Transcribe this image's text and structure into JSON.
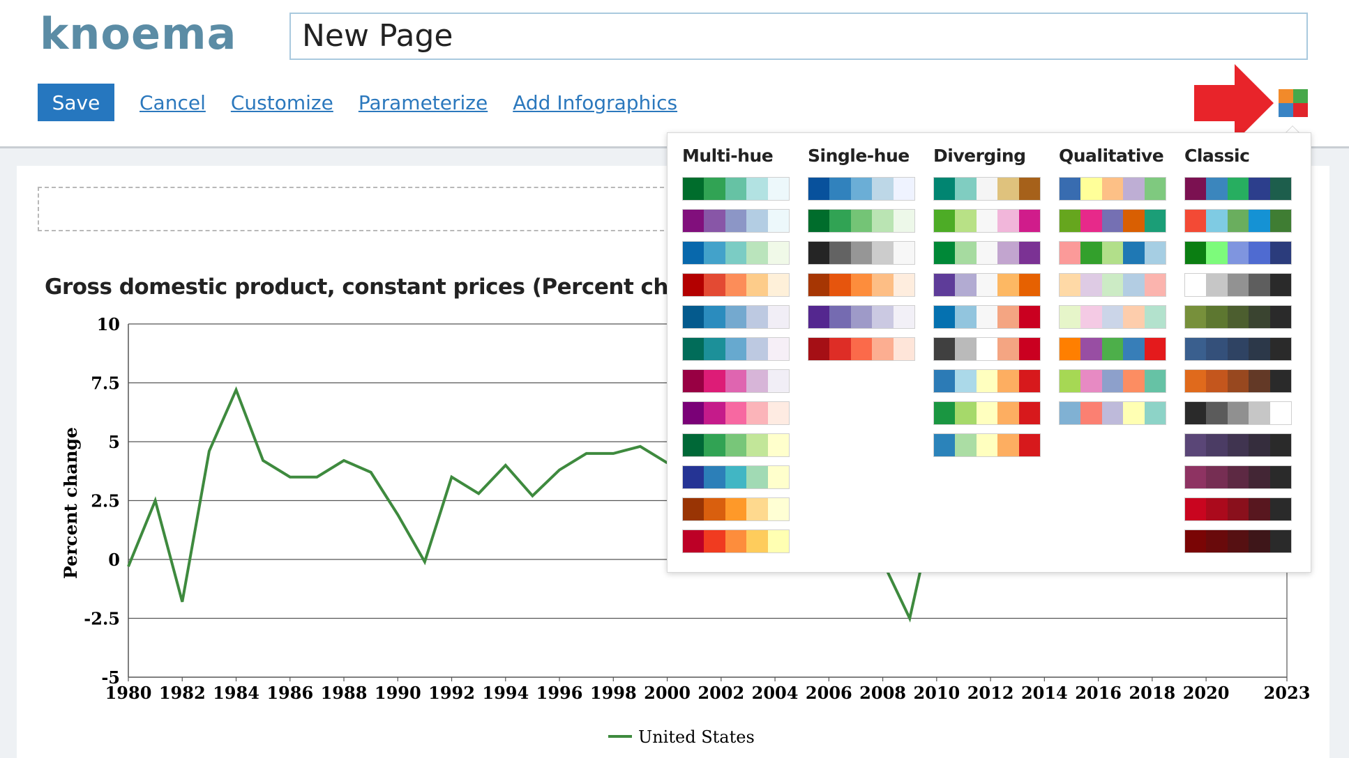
{
  "header": {
    "logo": "knoema",
    "page_title_value": "New Page"
  },
  "toolbar": {
    "save_label": "Save",
    "links": [
      "Cancel",
      "Customize",
      "Parameterize",
      "Add Infographics"
    ]
  },
  "chart": {
    "title": "Gross domestic product, constant prices (Percent change)",
    "ylabel": "Percent change"
  },
  "chart_data": {
    "type": "line",
    "title": "Gross domestic product, constant prices (Percent change)",
    "xlabel": "",
    "ylabel": "Percent change",
    "ylim": [
      -5,
      10
    ],
    "yticks": [
      "10",
      "7.5",
      "5",
      "2.5",
      "0",
      "-2.5",
      "-5"
    ],
    "xticks": [
      "1980",
      "1982",
      "1984",
      "1986",
      "1988",
      "1990",
      "1992",
      "1994",
      "1996",
      "1998",
      "2000",
      "2002",
      "2004",
      "2006",
      "2008",
      "2010",
      "2012",
      "2014",
      "2016",
      "2018",
      "2020",
      "2023"
    ],
    "legend_position": "bottom",
    "series": [
      {
        "name": "United States",
        "color": "#3e8a3e",
        "x": [
          1980,
          1981,
          1982,
          1983,
          1984,
          1985,
          1986,
          1987,
          1988,
          1989,
          1990,
          1991,
          1992,
          1993,
          1994,
          1995,
          1996,
          1997,
          1998,
          1999,
          2000,
          2008,
          2009,
          2010
        ],
        "values": [
          -0.3,
          2.5,
          -1.8,
          4.6,
          7.2,
          4.2,
          3.5,
          3.5,
          4.2,
          3.7,
          1.9,
          -0.1,
          3.5,
          2.8,
          4.0,
          2.7,
          3.8,
          4.5,
          4.5,
          4.8,
          4.1,
          -0.1,
          -2.5,
          2.6
        ]
      }
    ]
  },
  "palette_menu": {
    "columns": [
      {
        "title": "Multi-hue",
        "palettes": [
          [
            "#006d2c",
            "#31a354",
            "#66c2a4",
            "#b2e2e2",
            "#edf8fb"
          ],
          [
            "#810f7c",
            "#8856a7",
            "#8c96c6",
            "#b3cde3",
            "#edf8fb"
          ],
          [
            "#0868ac",
            "#43a2ca",
            "#7bccc4",
            "#bae4bc",
            "#f0f9e8"
          ],
          [
            "#b30000",
            "#e34a33",
            "#fc8d59",
            "#fdcc8a",
            "#fef0d9"
          ],
          [
            "#045a8d",
            "#2b8cbe",
            "#74a9cf",
            "#bdc9e1",
            "#f1eef6"
          ],
          [
            "#016c59",
            "#1c9099",
            "#67a9cf",
            "#bdc9e1",
            "#f6eff7"
          ],
          [
            "#980043",
            "#dd1c77",
            "#df65b0",
            "#d7b5d8",
            "#f1eef6"
          ],
          [
            "#7a0177",
            "#c51b8a",
            "#f768a1",
            "#fbb4b9",
            "#feebe2"
          ],
          [
            "#006837",
            "#31a354",
            "#78c679",
            "#c2e699",
            "#ffffcc"
          ],
          [
            "#253494",
            "#2c7fb8",
            "#41b6c4",
            "#a1dab4",
            "#ffffcc"
          ],
          [
            "#993404",
            "#d95f0e",
            "#fe9929",
            "#fed98e",
            "#ffffd4"
          ],
          [
            "#bd0026",
            "#f03b20",
            "#fd8d3c",
            "#fecc5c",
            "#ffffb2"
          ]
        ]
      },
      {
        "title": "Single-hue",
        "palettes": [
          [
            "#08519c",
            "#3182bd",
            "#6baed6",
            "#bdd7e7",
            "#eff3ff"
          ],
          [
            "#006d2c",
            "#31a354",
            "#74c476",
            "#bae4b3",
            "#edf8e9"
          ],
          [
            "#252525",
            "#636363",
            "#969696",
            "#cccccc",
            "#f7f7f7"
          ],
          [
            "#a63603",
            "#e6550d",
            "#fd8d3c",
            "#fdbe85",
            "#feedde"
          ],
          [
            "#54278f",
            "#756bb1",
            "#9e9ac8",
            "#cbc9e2",
            "#f2f0f7"
          ],
          [
            "#a50f15",
            "#de2d26",
            "#fb6a4a",
            "#fcae91",
            "#fee5d9"
          ]
        ]
      },
      {
        "title": "Diverging",
        "palettes": [
          [
            "#018571",
            "#80cdc1",
            "#f5f5f5",
            "#dfc27d",
            "#a6611a"
          ],
          [
            "#4dac26",
            "#b8e186",
            "#f7f7f7",
            "#f1b6da",
            "#d01c8b"
          ],
          [
            "#008837",
            "#a6dba0",
            "#f7f7f7",
            "#c2a5cf",
            "#7b3294"
          ],
          [
            "#5e3c99",
            "#b2abd2",
            "#f7f7f7",
            "#fdb863",
            "#e66101"
          ],
          [
            "#0571b0",
            "#92c5de",
            "#f7f7f7",
            "#f4a582",
            "#ca0020"
          ],
          [
            "#404040",
            "#bababa",
            "#ffffff",
            "#f4a582",
            "#ca0020"
          ],
          [
            "#2c7bb6",
            "#abd9e9",
            "#ffffbf",
            "#fdae61",
            "#d7191c"
          ],
          [
            "#1a9641",
            "#a6d96a",
            "#ffffbf",
            "#fdae61",
            "#d7191c"
          ],
          [
            "#2b83ba",
            "#abdda4",
            "#ffffbf",
            "#fdae61",
            "#d7191c"
          ]
        ]
      },
      {
        "title": "Qualitative",
        "palettes": [
          [
            "#386cb0",
            "#ffff99",
            "#fdc086",
            "#beaed4",
            "#7fc97f"
          ],
          [
            "#66a61e",
            "#e7298a",
            "#7570b3",
            "#d95f02",
            "#1b9e77"
          ],
          [
            "#fb9a99",
            "#33a02c",
            "#b2df8a",
            "#1f78b4",
            "#a6cee3"
          ],
          [
            "#fed9a6",
            "#decbe4",
            "#ccebc5",
            "#b3cde3",
            "#fbb4ae"
          ],
          [
            "#e6f5c9",
            "#f4cae4",
            "#cbd5e8",
            "#fdcdac",
            "#b3e2cd"
          ],
          [
            "#ff7f00",
            "#984ea3",
            "#4daf4a",
            "#377eb8",
            "#e41a1c"
          ],
          [
            "#a6d854",
            "#e78ac3",
            "#8da0cb",
            "#fc8d62",
            "#66c2a5"
          ],
          [
            "#80b1d3",
            "#fb8072",
            "#bebada",
            "#ffffb3",
            "#8dd3c7"
          ]
        ]
      },
      {
        "title": "Classic",
        "palettes": [
          [
            "#7b1151",
            "#3b86bd",
            "#27ae60",
            "#2c3e8c",
            "#1d5e4c"
          ],
          [
            "#f34a35",
            "#7fcbe3",
            "#6aae5e",
            "#1592d4",
            "#3f7d33"
          ],
          [
            "#0b7e12",
            "#7dfb7b",
            "#7f95df",
            "#4f6bd1",
            "#2b3c7c"
          ],
          [
            "#ffffff",
            "#c6c6c6",
            "#929292",
            "#5e5e5e",
            "#2a2a2a"
          ],
          [
            "#77903b",
            "#5d7730",
            "#4c5e2f",
            "#3a4430",
            "#2a2a2a"
          ],
          [
            "#3a5f8e",
            "#34507a",
            "#2f4363",
            "#2c3849",
            "#2a2a2a"
          ],
          [
            "#e06a1c",
            "#c4561d",
            "#98481f",
            "#633926",
            "#2a2a2a"
          ],
          [
            "#2a2a2a",
            "#5b5b5b",
            "#909090",
            "#c6c6c6",
            "#ffffff"
          ],
          [
            "#5a4677",
            "#4b3c64",
            "#403450",
            "#352d3d",
            "#2a2a2a"
          ],
          [
            "#8e3362",
            "#762e53",
            "#5d2943",
            "#432635",
            "#2a2a2a"
          ],
          [
            "#c9051f",
            "#ab0a1c",
            "#8a101c",
            "#58171f",
            "#2a2a2a"
          ],
          [
            "#7a0505",
            "#690a0b",
            "#561012",
            "#3e1619",
            "#2a2a2a"
          ]
        ]
      }
    ]
  }
}
